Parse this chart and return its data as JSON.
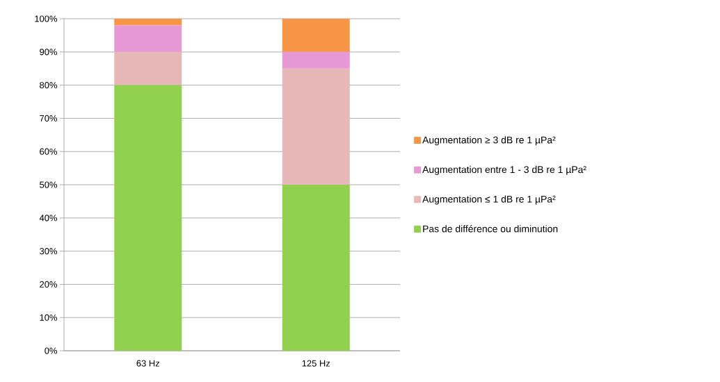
{
  "chart_data": {
    "type": "bar",
    "stacked": true,
    "categories": [
      "63 Hz",
      "125 Hz"
    ],
    "series": [
      {
        "name": "Pas de différence ou diminution",
        "color": "#92d050",
        "values": [
          80,
          50
        ]
      },
      {
        "name": "Augmentation ≤  1 dB re 1 µPa²",
        "color": "#e6b9b8",
        "values": [
          10,
          35
        ]
      },
      {
        "name": "Augmentation entre 1 - 3 dB re 1 µPa²",
        "color": "#e699d5",
        "values": [
          8,
          5
        ]
      },
      {
        "name": "Augmentation ≥ 3 dB re 1 µPa²",
        "color": "#f79646",
        "values": [
          2,
          10
        ]
      }
    ],
    "ylim": [
      0,
      100
    ],
    "yticks": [
      {
        "value": 0,
        "label": "0%"
      },
      {
        "value": 10,
        "label": "10%"
      },
      {
        "value": 20,
        "label": "20%"
      },
      {
        "value": 30,
        "label": "30%"
      },
      {
        "value": 40,
        "label": "40%"
      },
      {
        "value": 50,
        "label": "50%"
      },
      {
        "value": 60,
        "label": "60%"
      },
      {
        "value": 70,
        "label": "70%"
      },
      {
        "value": 80,
        "label": "80%"
      },
      {
        "value": 90,
        "label": "90%"
      },
      {
        "value": 100,
        "label": "100%"
      }
    ],
    "grid": "y",
    "legend": "right"
  }
}
